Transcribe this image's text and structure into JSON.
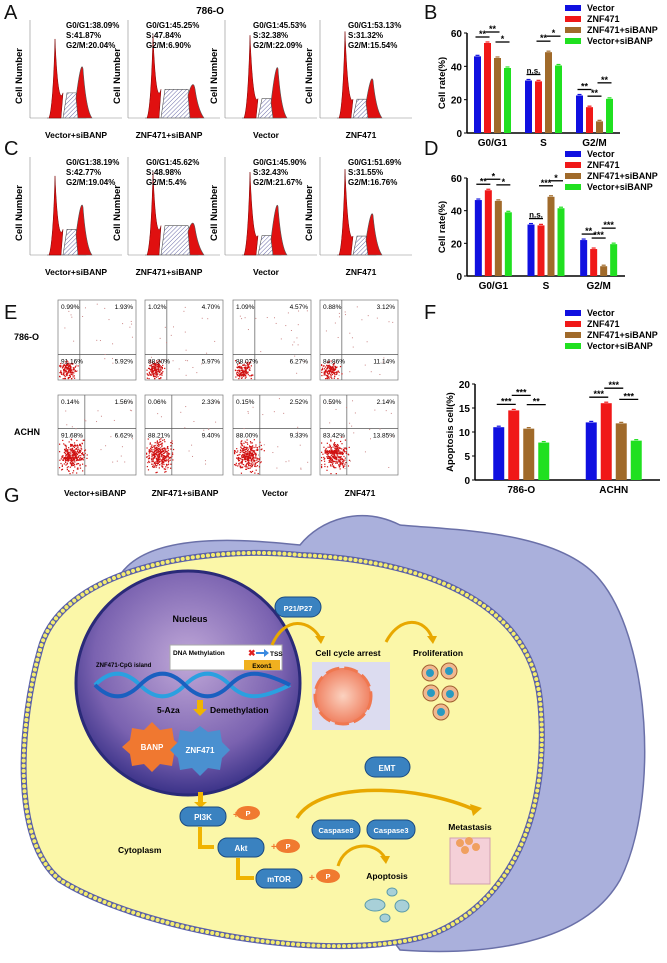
{
  "panel_labels": {
    "A": "A",
    "B": "B",
    "C": "C",
    "D": "D",
    "E": "E",
    "F": "F",
    "G": "G"
  },
  "colors": {
    "Vector": "#1010e0",
    "ZNF471": "#f01818",
    "ZNF471+siBANP": "#a06a2a",
    "Vector+siBANP": "#20e020",
    "histogram_peak": "#e01010",
    "membrane": "#e8e070",
    "cytoplasm": "#fbf7a8",
    "cell_outer": "#aab0dc",
    "nucleus": "#5a4aa0",
    "node": "#3a82c0",
    "phospho": "#f07a30",
    "arrow": "#f0b400"
  },
  "panelA": {
    "cell_line": "786-O",
    "ylabel": "Cell  Number",
    "plots": [
      {
        "name": "Vector+siBANP",
        "g1": "G0/G1:38.09%",
        "s": "S:41.87%",
        "g2": "G2/M:20.04%"
      },
      {
        "name": "ZNF471+siBANP",
        "g1": "G0/G1:45.25%",
        "s": "S:47.84%",
        "g2": "G2/M:6.90%"
      },
      {
        "name": "Vector",
        "g1": "G0/G1:45.53%",
        "s": "S:32.38%",
        "g2": "G2/M:22.09%"
      },
      {
        "name": "ZNF471",
        "g1": "G0/G1:53.13%",
        "s": "S:31.32%",
        "g2": "G2/M:15.54%"
      }
    ]
  },
  "panelC": {
    "ylabel": "Cell  Number",
    "plots": [
      {
        "name": "Vector+siBANP",
        "g1": "G0/G1:38.19%",
        "s": "S:42.77%",
        "g2": "G2/M:19.04%"
      },
      {
        "name": "ZNF471+siBANP",
        "g1": "G0/G1:45.62%",
        "s": "S:48.98%",
        "g2": "G2/M:5.4%"
      },
      {
        "name": "Vector",
        "g1": "G0/G1:45.90%",
        "s": "S:32.43%",
        "g2": "G2/M:21.67%"
      },
      {
        "name": "ZNF471",
        "g1": "G0/G1:51.69%",
        "s": "S:31.55%",
        "g2": "G2/M:16.76%"
      }
    ]
  },
  "panelE": {
    "rows": [
      {
        "label": "786-O",
        "plots": [
          [
            "0.99%",
            "1.93%",
            "91.16%",
            "5.92%"
          ],
          [
            "1.02%",
            "4.70%",
            "88.30%",
            "5.97%"
          ],
          [
            "1.09%",
            "4.57%",
            "88.07%",
            "6.27%"
          ],
          [
            "0.88%",
            "3.12%",
            "84.86%",
            "11.14%"
          ]
        ]
      },
      {
        "label": "ACHN",
        "plots": [
          [
            "0.14%",
            "1.56%",
            "91.68%",
            "6.62%"
          ],
          [
            "0.06%",
            "2.33%",
            "88.21%",
            "9.40%"
          ],
          [
            "0.15%",
            "2.52%",
            "88.00%",
            "9.33%"
          ],
          [
            "0.59%",
            "2.14%",
            "83.42%",
            "13.85%"
          ]
        ]
      }
    ],
    "columns": [
      "Vector+siBANP",
      "ZNF471+siBANP",
      "Vector",
      "ZNF471"
    ]
  },
  "chart_data": [
    {
      "panel": "B",
      "type": "bar",
      "categories": [
        "G0/G1",
        "S",
        "G2/M"
      ],
      "ylabel": "Cell  rate(%)",
      "ylim": [
        0,
        60
      ],
      "yticks": [
        0,
        20,
        40,
        60
      ],
      "legend": "top-right",
      "series": [
        {
          "name": "Vector",
          "values": [
            46,
            31.5,
            22.5
          ]
        },
        {
          "name": "ZNF471",
          "values": [
            54,
            31,
            15.5
          ]
        },
        {
          "name": "ZNF471+siBANP",
          "values": [
            45,
            48.5,
            7
          ]
        },
        {
          "name": "Vector+siBANP",
          "values": [
            39,
            40.5,
            20.5
          ]
        }
      ],
      "significance": [
        [
          "**",
          "**",
          "*"
        ],
        [
          "n.s.",
          "**",
          "*"
        ],
        [
          "**",
          "**",
          "**"
        ]
      ]
    },
    {
      "panel": "D",
      "type": "bar",
      "categories": [
        "G0/G1",
        "S",
        "G2/M"
      ],
      "ylabel": "Cell  rate(%)",
      "ylim": [
        0,
        60
      ],
      "yticks": [
        0,
        20,
        40,
        60
      ],
      "legend": "top-right",
      "series": [
        {
          "name": "Vector",
          "values": [
            46.5,
            31.5,
            22
          ]
        },
        {
          "name": "ZNF471",
          "values": [
            52.5,
            31,
            16.5
          ]
        },
        {
          "name": "ZNF471+siBANP",
          "values": [
            46,
            48.5,
            6
          ]
        },
        {
          "name": "Vector+siBANP",
          "values": [
            39,
            41.5,
            19.5
          ]
        }
      ],
      "significance": [
        [
          "**",
          "*",
          "*"
        ],
        [
          "n.s.",
          "***",
          "*"
        ],
        [
          "**",
          "***",
          "***"
        ]
      ]
    },
    {
      "panel": "F",
      "type": "bar",
      "categories": [
        "786-O",
        "ACHN"
      ],
      "ylabel": "Apoptosis  cell(%)",
      "ylim": [
        0,
        20
      ],
      "yticks": [
        0,
        5,
        10,
        15,
        20
      ],
      "legend": "top",
      "series": [
        {
          "name": "Vector",
          "values": [
            11,
            12
          ]
        },
        {
          "name": "ZNF471",
          "values": [
            14.5,
            16
          ]
        },
        {
          "name": "ZNF471+siBANP",
          "values": [
            10.7,
            11.8
          ]
        },
        {
          "name": "Vector+siBANP",
          "values": [
            7.8,
            8.2
          ]
        }
      ],
      "significance": [
        [
          "***",
          "***",
          "**"
        ],
        [
          "***",
          "***",
          "***"
        ]
      ]
    }
  ],
  "diagram": {
    "nucleus": "Nucleus",
    "p21": "P21/P27",
    "dna_methylation": "DNA Methylation",
    "tss": "TSS",
    "exon": "Exon1",
    "cpg": "ZNF471-CpG island",
    "aza": "5-Aza",
    "demethylation": "Demethylation",
    "banp": "BANP",
    "znf471": "ZNF471",
    "cell_cycle": "Cell cycle arrest",
    "proliferation": "Proliferation",
    "emt": "EMT",
    "pi3k": "PI3K",
    "akt": "Akt",
    "mtor": "mTOR",
    "p": "P",
    "plus": "+",
    "caspase8": "Caspase8",
    "caspase3": "Caspase3",
    "metastasis": "Metastasis",
    "apoptosis": "Apoptosis",
    "cytoplasm": "Cytoplasm"
  }
}
